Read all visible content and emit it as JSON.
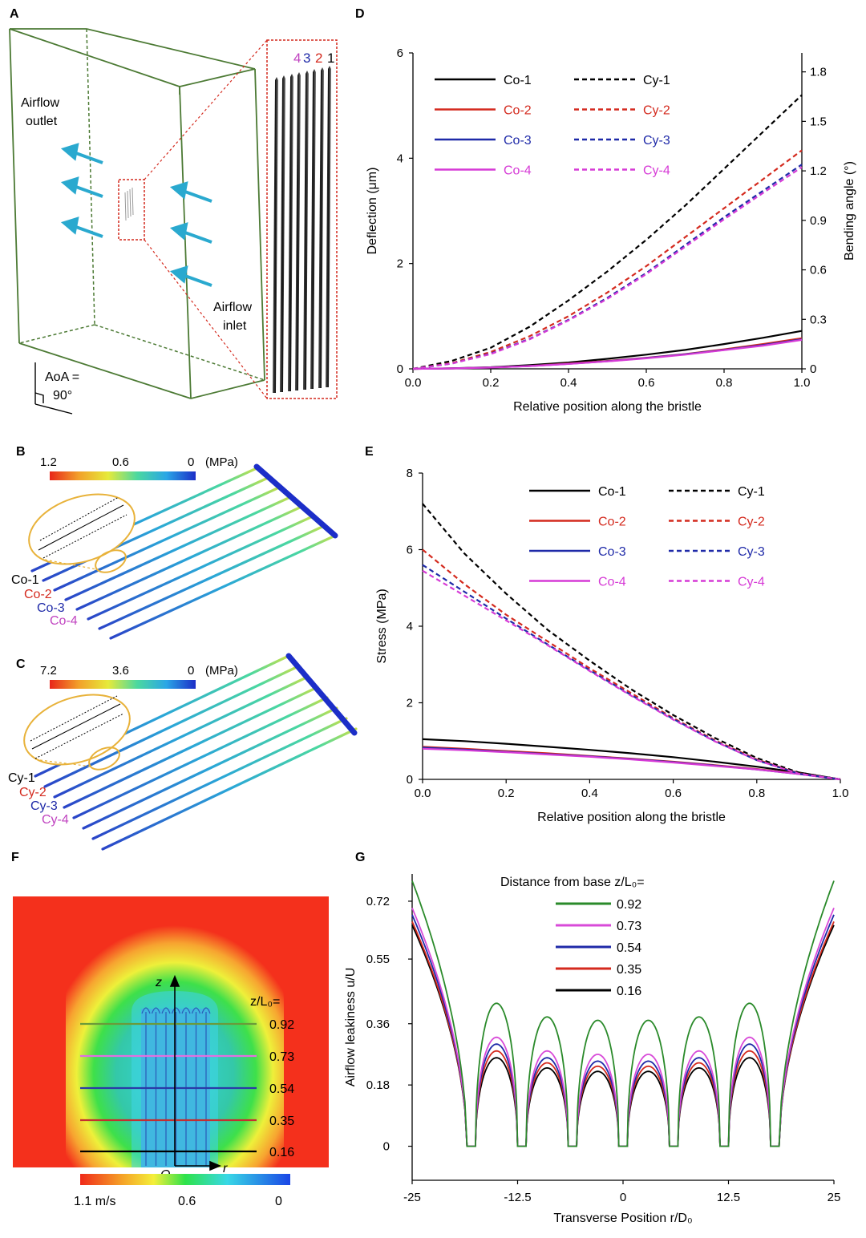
{
  "panel_labels": {
    "A": "A",
    "B": "B",
    "C": "C",
    "D": "D",
    "E": "E",
    "F": "F",
    "G": "G"
  },
  "colors": {
    "co1": "#000000",
    "co2": "#d42a1e",
    "co3": "#1f2aa8",
    "co4": "#d63ad6",
    "arrow": "#2aa9cf",
    "box": "#4c7a34",
    "zoom": "#d42a1e",
    "ellipse": "#e8b23a",
    "g1": "#2a8a2a",
    "g2": "#d84ad8",
    "g3": "#1f2aa8",
    "g4": "#d42a1e",
    "g5": "#000000"
  },
  "panel_a": {
    "outlet_label_1": "Airflow",
    "outlet_label_2": "outlet",
    "inlet_label_1": "Airflow",
    "inlet_label_2": "inlet",
    "aoa_label_1": "AoA =",
    "aoa_label_2": "90°",
    "bristle_numbers": [
      {
        "text": "4",
        "color": "#c043c0"
      },
      {
        "text": "3",
        "color": "#1f2aa8"
      },
      {
        "text": "2",
        "color": "#d42a1e"
      },
      {
        "text": "1",
        "color": "#000000"
      }
    ]
  },
  "panel_b": {
    "colorbar_ticks": [
      "1.2",
      "0.6",
      "0"
    ],
    "unit": "(MPa)",
    "labels": [
      {
        "text": "Co-1",
        "color": "#000000"
      },
      {
        "text": "Co-2",
        "color": "#d42a1e"
      },
      {
        "text": "Co-3",
        "color": "#1f2aa8"
      },
      {
        "text": "Co-4",
        "color": "#c043c0"
      }
    ]
  },
  "panel_c": {
    "colorbar_ticks": [
      "7.2",
      "3.6",
      "0"
    ],
    "unit": "(MPa)",
    "labels": [
      {
        "text": "Cy-1",
        "color": "#000000"
      },
      {
        "text": "Cy-2",
        "color": "#d42a1e"
      },
      {
        "text": "Cy-3",
        "color": "#1f2aa8"
      },
      {
        "text": "Cy-4",
        "color": "#c043c0"
      }
    ]
  },
  "panel_f": {
    "axis_z": "z",
    "axis_r": "r",
    "origin": "O",
    "legend_title": "z/L₀=",
    "lines": [
      {
        "value": "0.92",
        "color": "#6b9a3a"
      },
      {
        "value": "0.73",
        "color": "#e070e0"
      },
      {
        "value": "0.54",
        "color": "#2a3aa8"
      },
      {
        "value": "0.35",
        "color": "#c43030"
      },
      {
        "value": "0.16",
        "color": "#000000"
      }
    ],
    "colorbar_ticks": [
      "1.1 m/s",
      "0.6",
      "0"
    ]
  },
  "chart_data": [
    {
      "id": "D",
      "type": "line",
      "xlabel": "Relative position along the bristle",
      "ylabel": "Deflection (μm)",
      "ylabel2": "Bending angle (°)",
      "xlim": [
        0,
        1
      ],
      "ylim": [
        0,
        6
      ],
      "ylim2": [
        0,
        1.8
      ],
      "xticks": [
        "0.0",
        "0.2",
        "0.4",
        "0.6",
        "0.8",
        "1.0"
      ],
      "yticks": [
        "0",
        "2",
        "4",
        "6"
      ],
      "yticks2": [
        "0",
        "0.3",
        "0.6",
        "0.9",
        "1.2",
        "1.5",
        "1.8"
      ],
      "x": [
        0,
        0.1,
        0.2,
        0.3,
        0.4,
        0.5,
        0.6,
        0.7,
        0.8,
        0.9,
        1.0
      ],
      "series": [
        {
          "name": "Co-1",
          "style": "solid",
          "color": "#000000",
          "values": [
            0,
            0.01,
            0.03,
            0.07,
            0.12,
            0.19,
            0.27,
            0.36,
            0.47,
            0.59,
            0.72
          ]
        },
        {
          "name": "Co-2",
          "style": "solid",
          "color": "#d42a1e",
          "values": [
            0,
            0.008,
            0.025,
            0.055,
            0.1,
            0.15,
            0.21,
            0.28,
            0.37,
            0.47,
            0.58
          ]
        },
        {
          "name": "Co-3",
          "style": "solid",
          "color": "#1f2aa8",
          "values": [
            0,
            0.008,
            0.024,
            0.053,
            0.095,
            0.145,
            0.205,
            0.275,
            0.36,
            0.45,
            0.56
          ]
        },
        {
          "name": "Co-4",
          "style": "solid",
          "color": "#d63ad6",
          "values": [
            0,
            0.008,
            0.024,
            0.052,
            0.093,
            0.142,
            0.2,
            0.27,
            0.355,
            0.44,
            0.55
          ]
        },
        {
          "name": "Cy-1",
          "style": "dashed",
          "color": "#000000",
          "values": [
            0,
            0.15,
            0.4,
            0.8,
            1.3,
            1.85,
            2.45,
            3.1,
            3.8,
            4.5,
            5.2
          ]
        },
        {
          "name": "Cy-2",
          "style": "dashed",
          "color": "#d42a1e",
          "values": [
            0,
            0.11,
            0.32,
            0.62,
            1.0,
            1.45,
            1.95,
            2.5,
            3.05,
            3.6,
            4.15
          ]
        },
        {
          "name": "Cy-3",
          "style": "dashed",
          "color": "#1f2aa8",
          "values": [
            0,
            0.1,
            0.29,
            0.57,
            0.93,
            1.35,
            1.82,
            2.35,
            2.88,
            3.38,
            3.88
          ]
        },
        {
          "name": "Cy-4",
          "style": "dashed",
          "color": "#d63ad6",
          "values": [
            0,
            0.1,
            0.28,
            0.56,
            0.92,
            1.33,
            1.8,
            2.32,
            2.84,
            3.34,
            3.83
          ]
        }
      ]
    },
    {
      "id": "E",
      "type": "line",
      "xlabel": "Relative position along the bristle",
      "ylabel": "Stress (MPa)",
      "xlim": [
        0,
        1
      ],
      "ylim": [
        0,
        8
      ],
      "xticks": [
        "0.0",
        "0.2",
        "0.4",
        "0.6",
        "0.8",
        "1.0"
      ],
      "yticks": [
        "0",
        "2",
        "4",
        "6",
        "8"
      ],
      "x": [
        0,
        0.1,
        0.2,
        0.3,
        0.4,
        0.5,
        0.6,
        0.7,
        0.8,
        0.9,
        1.0
      ],
      "series": [
        {
          "name": "Co-1",
          "style": "solid",
          "color": "#000000",
          "values": [
            1.05,
            1.0,
            0.93,
            0.85,
            0.77,
            0.68,
            0.58,
            0.46,
            0.33,
            0.18,
            0
          ]
        },
        {
          "name": "Co-2",
          "style": "solid",
          "color": "#d42a1e",
          "values": [
            0.85,
            0.8,
            0.74,
            0.68,
            0.61,
            0.54,
            0.46,
            0.37,
            0.27,
            0.15,
            0
          ]
        },
        {
          "name": "Co-3",
          "style": "solid",
          "color": "#1f2aa8",
          "values": [
            0.83,
            0.78,
            0.72,
            0.66,
            0.6,
            0.53,
            0.45,
            0.36,
            0.26,
            0.14,
            0
          ]
        },
        {
          "name": "Co-4",
          "style": "solid",
          "color": "#d63ad6",
          "values": [
            0.8,
            0.76,
            0.71,
            0.65,
            0.59,
            0.52,
            0.44,
            0.35,
            0.26,
            0.14,
            0
          ]
        },
        {
          "name": "Cy-1",
          "style": "dashed",
          "color": "#000000",
          "values": [
            7.2,
            5.9,
            4.85,
            3.9,
            3.1,
            2.35,
            1.68,
            1.08,
            0.56,
            0.18,
            0
          ]
        },
        {
          "name": "Cy-2",
          "style": "dashed",
          "color": "#d42a1e",
          "values": [
            6.0,
            5.1,
            4.3,
            3.6,
            2.9,
            2.25,
            1.6,
            1.02,
            0.52,
            0.16,
            0
          ]
        },
        {
          "name": "Cy-3",
          "style": "dashed",
          "color": "#1f2aa8",
          "values": [
            5.6,
            4.9,
            4.2,
            3.52,
            2.85,
            2.2,
            1.58,
            1.0,
            0.5,
            0.15,
            0
          ]
        },
        {
          "name": "Cy-4",
          "style": "dashed",
          "color": "#d63ad6",
          "values": [
            5.45,
            4.8,
            4.15,
            3.5,
            2.83,
            2.18,
            1.56,
            0.99,
            0.5,
            0.15,
            0
          ]
        }
      ]
    },
    {
      "id": "G",
      "type": "line",
      "title": "Distance from base z/L₀=",
      "xlabel": "Transverse Position r/D₀",
      "ylabel": "Airflow leakiness u/U",
      "xlim": [
        -25,
        25
      ],
      "ylim": [
        -0.1,
        0.8
      ],
      "xticks": [
        "-25",
        "-12.5",
        "0",
        "12.5",
        "25"
      ],
      "yticks": [
        "0",
        "0.18",
        "0.36",
        "0.55",
        "0.72"
      ],
      "ytick_values": [
        0,
        0.18,
        0.36,
        0.55,
        0.72
      ],
      "centers": [
        -15,
        -9,
        -3,
        3,
        9,
        15
      ],
      "gaps": [
        -18,
        -12,
        -6,
        0,
        6,
        12,
        18
      ],
      "series": [
        {
          "name": "0.92",
          "color": "#2a8a2a",
          "edge": 0.78,
          "peaks": [
            0.42,
            0.38,
            0.37,
            0.37,
            0.38,
            0.42
          ]
        },
        {
          "name": "0.73",
          "color": "#d84ad8",
          "edge": 0.7,
          "peaks": [
            0.32,
            0.28,
            0.27,
            0.27,
            0.28,
            0.32
          ]
        },
        {
          "name": "0.54",
          "color": "#1f2aa8",
          "edge": 0.68,
          "peaks": [
            0.3,
            0.26,
            0.25,
            0.25,
            0.26,
            0.3
          ]
        },
        {
          "name": "0.35",
          "color": "#d42a1e",
          "edge": 0.66,
          "peaks": [
            0.28,
            0.245,
            0.235,
            0.235,
            0.245,
            0.28
          ]
        },
        {
          "name": "0.16",
          "color": "#000000",
          "edge": 0.65,
          "peaks": [
            0.26,
            0.23,
            0.22,
            0.22,
            0.23,
            0.26
          ]
        }
      ]
    }
  ]
}
